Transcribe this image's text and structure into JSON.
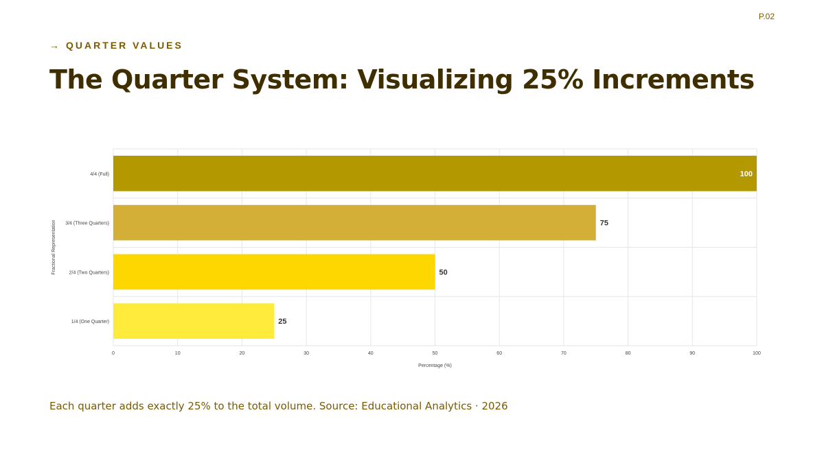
{
  "header": {
    "page_number": "P.02",
    "kicker_icon": "arrow-right-icon",
    "kicker_arrow": "→",
    "kicker": "QUARTER VALUES",
    "title": "The Quarter System: Visualizing 25% Increments"
  },
  "caption": "Each quarter adds exactly 25% to the total volume. Source: Educational Analytics · 2026",
  "colors": {
    "text_primary": "#3f2e00",
    "text_accent": "#7a5a00",
    "grid": "#e6e6e6"
  },
  "chart_data": {
    "type": "bar",
    "orientation": "horizontal",
    "categories": [
      "4/4 (Full)",
      "3/4 (Three Quarters)",
      "2/4 (Two Quarters)",
      "1/4 (One Quarter)"
    ],
    "values": [
      100,
      75,
      50,
      25
    ],
    "bar_colors": [
      "#b39800",
      "#d4af37",
      "#ffd700",
      "#ffeb3b"
    ],
    "data_labels": [
      "100",
      "75",
      "50",
      "25"
    ],
    "xlabel": "Percentage (%)",
    "ylabel": "Fractional Representation",
    "xlim": [
      0,
      100
    ],
    "xticks": [
      "0",
      "10",
      "20",
      "30",
      "40",
      "50",
      "60",
      "70",
      "80",
      "90",
      "100"
    ],
    "grid": true,
    "legend": "none"
  }
}
